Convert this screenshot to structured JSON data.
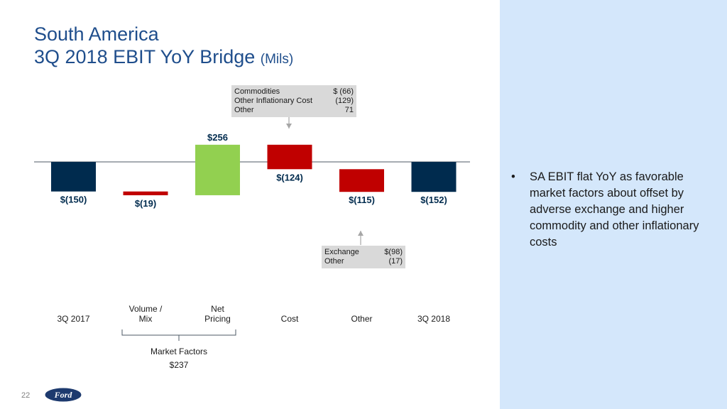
{
  "title": {
    "line1": "South America",
    "line2": "3Q 2018 EBIT YoY Bridge",
    "unit": "(Mils)"
  },
  "chart_data": {
    "type": "bar",
    "subtype": "waterfall",
    "categories": [
      "3Q 2017",
      "Volume / Mix",
      "Net Pricing",
      "Cost",
      "Other",
      "3Q 2018"
    ],
    "category_lines": [
      [
        "3Q 2017"
      ],
      [
        "Volume /",
        "Mix"
      ],
      [
        "Net",
        "Pricing"
      ],
      [
        "Cost"
      ],
      [
        "Other"
      ],
      [
        "3Q 2018"
      ]
    ],
    "values": [
      -150,
      -19,
      256,
      -124,
      -115,
      -152
    ],
    "bar_kinds": [
      "total",
      "change",
      "change",
      "change",
      "change",
      "total"
    ],
    "value_labels": [
      "$(150)",
      "$(19)",
      "$256",
      "$(124)",
      "$(115)",
      "$(152)"
    ],
    "colors": {
      "total": "#002b4e",
      "negative": "#c00000",
      "positive": "#92d050"
    },
    "grouping": {
      "label": "Market Factors",
      "value": "$237",
      "categories": [
        "Volume / Mix",
        "Net Pricing"
      ]
    },
    "callouts": [
      {
        "target": "Cost",
        "rows": [
          [
            "Commodities",
            "$  (66)"
          ],
          [
            "Other Inflationary Cost",
            "(129)"
          ],
          [
            "Other",
            "71"
          ]
        ]
      },
      {
        "target": "Other",
        "rows": [
          [
            "Exchange",
            "$(98)"
          ],
          [
            "Other",
            "(17)"
          ]
        ]
      }
    ]
  },
  "bullet": {
    "marker": "•",
    "text": "SA EBIT flat YoY as favorable market factors about offset by adverse exchange and higher commodity and other inflationary costs"
  },
  "footer": {
    "page_number": "22",
    "logo_text": "Ford"
  },
  "colors": {
    "title": "#1f4e8c",
    "panel": "#d4e7fb",
    "callout_bg": "#d9d9d9"
  }
}
